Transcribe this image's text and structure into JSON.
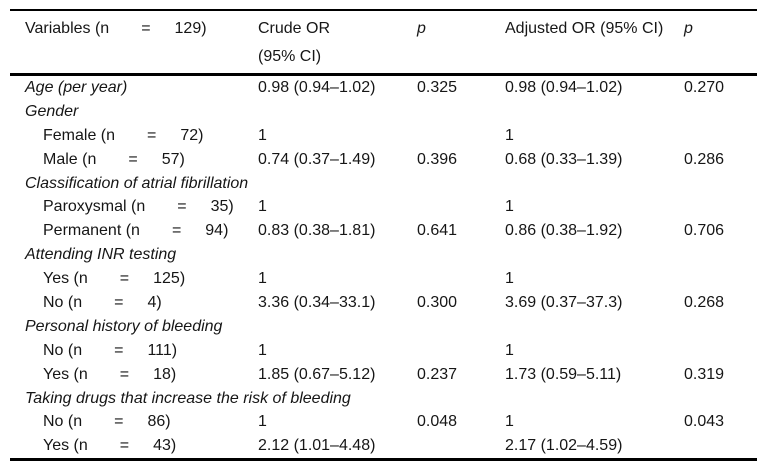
{
  "colors": {
    "background": "#ffffff",
    "text": "#161616",
    "rule_lines": "#000000"
  },
  "table": {
    "header": {
      "variables": "Variables (n  =  129)",
      "crude_line1": "Crude OR",
      "crude_line2": "(95% CI)",
      "p_crude": "p",
      "adjusted": "Adjusted OR (95% CI)",
      "p_adjusted": "p"
    },
    "rows": [
      {
        "type": "category",
        "label": "Age (per year)",
        "crude": "0.98 (0.94–1.02)",
        "p1": "0.325",
        "adjusted": "0.98 (0.94–1.02)",
        "p2": "0.270"
      },
      {
        "type": "category",
        "label": "Gender",
        "crude": "",
        "p1": "",
        "adjusted": "",
        "p2": ""
      },
      {
        "type": "sub",
        "label": "Female (n  =  72)",
        "crude": "1",
        "p1": "",
        "adjusted": "1",
        "p2": ""
      },
      {
        "type": "sub",
        "label": "Male (n  =  57)",
        "crude": "0.74 (0.37–1.49)",
        "p1": "0.396",
        "adjusted": "0.68 (0.33–1.39)",
        "p2": "0.286"
      },
      {
        "type": "category",
        "label": "Classification of atrial fibrillation",
        "crude": "",
        "p1": "",
        "adjusted": "",
        "p2": ""
      },
      {
        "type": "sub",
        "label": "Paroxysmal (n  =  35)",
        "crude": "1",
        "p1": "",
        "adjusted": "1",
        "p2": ""
      },
      {
        "type": "sub",
        "label": "Permanent (n  =  94)",
        "crude": "0.83 (0.38–1.81)",
        "p1": "0.641",
        "adjusted": "0.86 (0.38–1.92)",
        "p2": "0.706"
      },
      {
        "type": "category",
        "label": "Attending INR testing",
        "crude": "",
        "p1": "",
        "adjusted": "",
        "p2": ""
      },
      {
        "type": "sub",
        "label": "Yes (n  =  125)",
        "crude": "1",
        "p1": "",
        "adjusted": "1",
        "p2": ""
      },
      {
        "type": "sub",
        "label": "No (n  =  4)",
        "crude": "3.36 (0.34–33.1)",
        "p1": "0.300",
        "adjusted": "3.69 (0.37–37.3)",
        "p2": "0.268"
      },
      {
        "type": "category",
        "label": "Personal history of bleeding",
        "crude": "",
        "p1": "",
        "adjusted": "",
        "p2": ""
      },
      {
        "type": "sub",
        "label": "No (n  =  111)",
        "crude": "1",
        "p1": "",
        "adjusted": "1",
        "p2": ""
      },
      {
        "type": "sub",
        "label": "Yes (n  =  18)",
        "crude": "1.85 (0.67–5.12)",
        "p1": "0.237",
        "adjusted": "1.73 (0.59–5.11)",
        "p2": "0.319"
      },
      {
        "type": "category",
        "label": "Taking drugs that increase the risk of bleeding",
        "crude": "",
        "p1": "",
        "adjusted": "",
        "p2": ""
      },
      {
        "type": "sub",
        "label": "No (n  =  86)",
        "crude": "1",
        "p1": "0.048",
        "adjusted": "1",
        "p2": "0.043"
      },
      {
        "type": "sub",
        "label": "Yes (n  =  43)",
        "crude": "2.12 (1.01–4.48)",
        "p1": "",
        "adjusted": "2.17 (1.02–4.59)",
        "p2": ""
      }
    ]
  }
}
